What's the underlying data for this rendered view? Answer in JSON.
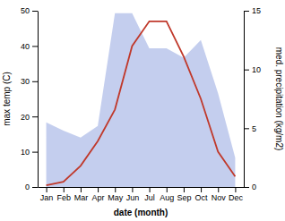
{
  "chart_data": {
    "type": "line",
    "xlabel": "date (month)",
    "ylabel": "max temp (C)",
    "y2label": "med. precipitation (kg/m2)",
    "categories": [
      "Jan",
      "Feb",
      "Mar",
      "Apr",
      "May",
      "Jun",
      "Jul",
      "Aug",
      "Sep",
      "Oct",
      "Nov",
      "Dec"
    ],
    "series": [
      {
        "type": "area",
        "axis": "y2",
        "color": "#b0bee8",
        "values": [
          5.5,
          4.8,
          4.2,
          5.2,
          14.8,
          14.8,
          11.8,
          11.8,
          11.0,
          12.5,
          8.0,
          2.5
        ]
      },
      {
        "type": "line",
        "color": "#c0392b",
        "values": [
          0.5,
          1.5,
          6,
          13,
          22,
          40,
          47,
          47,
          37,
          25,
          10,
          3
        ]
      }
    ],
    "ylim": [
      0,
      50
    ],
    "yticks": [
      0,
      10,
      20,
      30,
      40,
      50
    ],
    "y2lim": [
      0,
      15
    ],
    "y2ticks": [
      0,
      5,
      10,
      15
    ],
    "grid": false
  }
}
